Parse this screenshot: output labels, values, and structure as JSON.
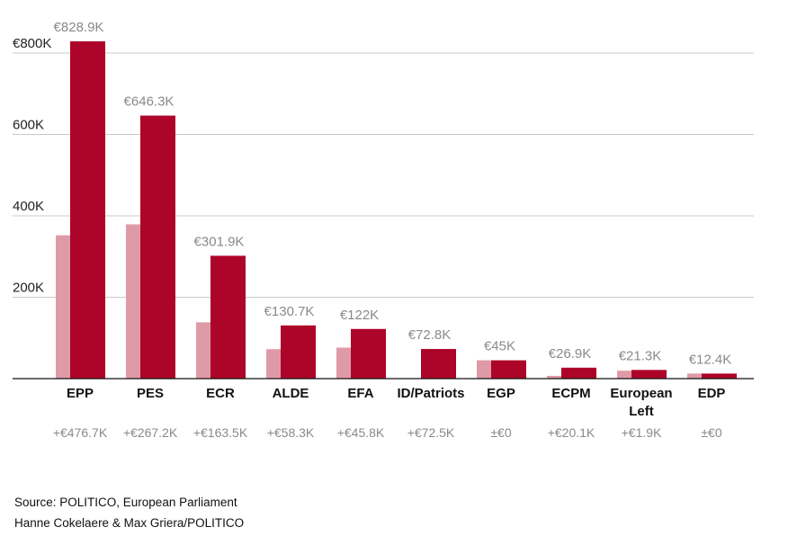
{
  "chart_data": {
    "type": "bar",
    "categories": [
      "EPP",
      "PES",
      "ECR",
      "ALDE",
      "EFA",
      "ID/Patriots",
      "EGP",
      "ECPM",
      "European Left",
      "EDP"
    ],
    "series": [
      {
        "values": [
          352.2,
          379.1,
          138.4,
          72.4,
          76.2,
          0.3,
          45.0,
          6.8,
          19.4,
          12.4
        ],
        "color": "#df9aa8"
      },
      {
        "values": [
          828.9,
          646.3,
          301.9,
          130.7,
          122.0,
          72.8,
          45.0,
          26.9,
          21.3,
          12.4
        ],
        "color": "#ad0429"
      }
    ],
    "value_labels": [
      "€828.9K",
      "€646.3K",
      "€301.9K",
      "€130.7K",
      "€122K",
      "€72.8K",
      "€45K",
      "€26.9K",
      "€21.3K",
      "€12.4K"
    ],
    "change_labels": [
      "+€476.7K",
      "+€267.2K",
      "+€163.5K",
      "+€58.3K",
      "+€45.8K",
      "+€72.5K",
      "±€0",
      "+€20.1K",
      "+€1.9K",
      "±€0"
    ],
    "y_ticks": [
      {
        "value": 200,
        "label": "200K"
      },
      {
        "value": 400,
        "label": "400K"
      },
      {
        "value": 600,
        "label": "600K"
      },
      {
        "value": 800,
        "label": "€800K"
      }
    ],
    "ylim": [
      0,
      850
    ],
    "units": "thousand EUR",
    "grid": true,
    "legend": "none"
  },
  "footer": {
    "source": "Source: POLITICO, European Parliament",
    "credit": "Hanne Cokelaere & Max Griera/POLITICO"
  }
}
